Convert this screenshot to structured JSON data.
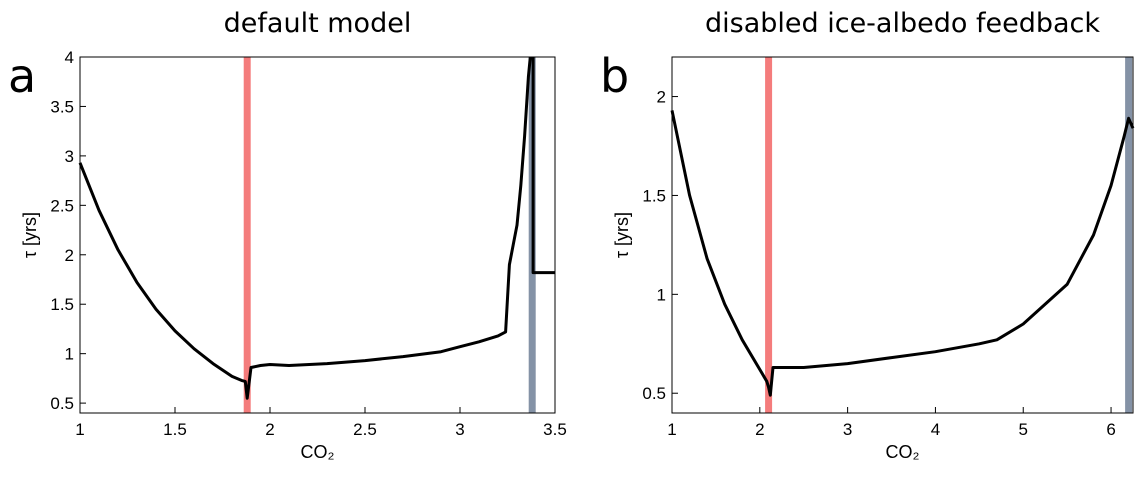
{
  "chart_data": [
    {
      "type": "line",
      "title": "default model",
      "panel_label": "a",
      "xlabel": "CO₂",
      "ylabel": "τ [yrs]",
      "xlim": [
        1,
        3.5
      ],
      "ylim": [
        0.4,
        4
      ],
      "xticks": [
        1,
        1.5,
        2,
        2.5,
        3,
        3.5
      ],
      "yticks": [
        0.5,
        1,
        1.5,
        2,
        2.5,
        3,
        3.5,
        4
      ],
      "color": "#000000",
      "x": [
        1,
        1.1,
        1.2,
        1.3,
        1.4,
        1.5,
        1.6,
        1.7,
        1.8,
        1.85,
        1.87,
        1.88,
        1.9,
        1.95,
        2.0,
        2.1,
        2.3,
        2.5,
        2.7,
        2.9,
        3.0,
        3.1,
        3.2,
        3.24,
        3.26,
        3.28,
        3.3,
        3.32,
        3.34,
        3.36,
        3.37,
        null,
        3.385,
        3.385,
        3.5
      ],
      "y": [
        2.93,
        2.45,
        2.05,
        1.72,
        1.45,
        1.23,
        1.05,
        0.9,
        0.77,
        0.73,
        0.72,
        0.55,
        0.86,
        0.88,
        0.89,
        0.88,
        0.9,
        0.93,
        0.97,
        1.02,
        1.07,
        1.12,
        1.18,
        1.22,
        1.9,
        2.1,
        2.3,
        2.7,
        3.2,
        3.8,
        4.0,
        null,
        4.0,
        1.82,
        1.82
      ],
      "vlines": [
        {
          "x": 1.88,
          "color": "#f47c7c"
        },
        {
          "x": 3.38,
          "color": "#8492a6"
        }
      ]
    },
    {
      "type": "line",
      "title": "disabled ice-albedo feedback",
      "panel_label": "b",
      "xlabel": "CO₂",
      "ylabel": "τ [yrs]",
      "xlim": [
        1,
        6.25
      ],
      "ylim": [
        0.4,
        2.2
      ],
      "xticks": [
        1,
        2,
        3,
        4,
        5,
        6
      ],
      "yticks": [
        0.5,
        1,
        1.5,
        2
      ],
      "color": "#000000",
      "x": [
        1,
        1.2,
        1.4,
        1.6,
        1.8,
        2.0,
        2.08,
        2.1,
        2.12,
        2.15,
        2.5,
        3,
        3.5,
        4,
        4.5,
        4.7,
        5,
        5.5,
        5.8,
        6.0,
        6.15,
        6.2,
        6.25
      ],
      "y": [
        1.93,
        1.5,
        1.18,
        0.95,
        0.77,
        0.62,
        0.56,
        0.53,
        0.49,
        0.63,
        0.63,
        0.65,
        0.68,
        0.71,
        0.75,
        0.77,
        0.85,
        1.05,
        1.3,
        1.55,
        1.8,
        1.89,
        1.84
      ],
      "vlines": [
        {
          "x": 2.1,
          "color": "#f47c7c"
        },
        {
          "x": 6.2,
          "color": "#8492a6"
        }
      ]
    }
  ]
}
